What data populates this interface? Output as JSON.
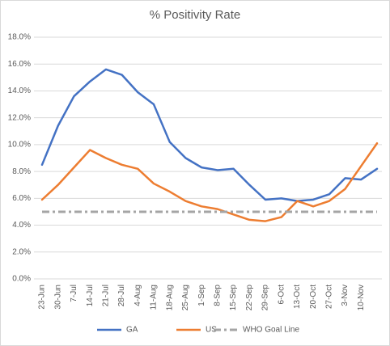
{
  "chart_data": {
    "type": "line",
    "title": "% Positivity Rate",
    "categories": [
      "23-Jun",
      "30-Jun",
      "7-Jul",
      "14-Jul",
      "21-Jul",
      "28-Jul",
      "4-Aug",
      "11-Aug",
      "18-Aug",
      "25-Aug",
      "1-Sep",
      "8-Sep",
      "15-Sep",
      "22-Sep",
      "29-Sep",
      "6-Oct",
      "13-Oct",
      "20-Oct",
      "27-Oct",
      "3-Nov",
      "10-Nov",
      null
    ],
    "series": [
      {
        "name": "GA",
        "color": "#4472c4",
        "values": [
          8.5,
          11.4,
          13.6,
          14.7,
          15.6,
          15.2,
          13.9,
          13.0,
          10.2,
          9.0,
          8.3,
          8.1,
          8.2,
          7.0,
          5.9,
          6.0,
          5.8,
          5.9,
          6.3,
          7.5,
          7.4,
          8.2
        ]
      },
      {
        "name": "US",
        "color": "#ed7d31",
        "values": [
          5.9,
          7.0,
          8.3,
          9.6,
          9.0,
          8.5,
          8.2,
          7.1,
          6.5,
          5.8,
          5.4,
          5.2,
          4.8,
          4.4,
          4.3,
          4.6,
          5.8,
          5.4,
          5.8,
          6.7,
          8.4,
          10.1
        ]
      },
      {
        "name": "WHO Goal Line",
        "color": "#a5a5a5",
        "dash": true,
        "values": [
          5,
          5,
          5,
          5,
          5,
          5,
          5,
          5,
          5,
          5,
          5,
          5,
          5,
          5,
          5,
          5,
          5,
          5,
          5,
          5,
          5,
          5
        ]
      }
    ],
    "ylim": [
      0,
      18
    ],
    "yticks": [
      {
        "value": 0,
        "label": "0.0%"
      },
      {
        "value": 2,
        "label": "2.0%"
      },
      {
        "value": 4,
        "label": "4.0%"
      },
      {
        "value": 6,
        "label": "6.0%"
      },
      {
        "value": 8,
        "label": "8.0%"
      },
      {
        "value": 10,
        "label": "10.0%"
      },
      {
        "value": 12,
        "label": "12.0%"
      },
      {
        "value": 14,
        "label": "14.0%"
      },
      {
        "value": 16,
        "label": "16.0%"
      },
      {
        "value": 18,
        "label": "18.0%"
      }
    ],
    "grid": true,
    "legend": "bottom"
  }
}
